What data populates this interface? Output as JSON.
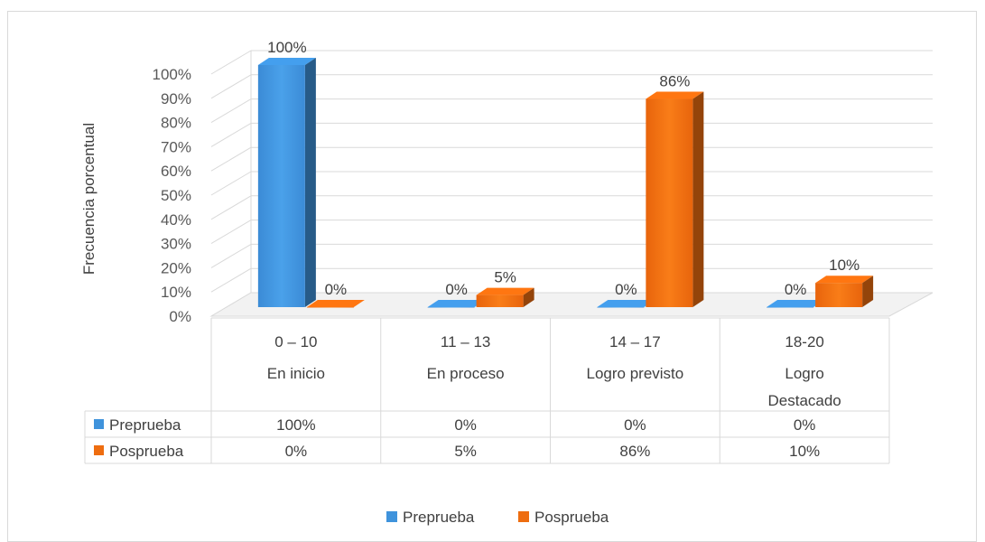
{
  "chart_data": {
    "type": "bar",
    "variant": "3d-clustered-column-with-data-table",
    "title": "",
    "ylabel": "Frecuencia porcentual",
    "xlabel": "",
    "ylim": [
      0,
      100
    ],
    "yticks": [
      "0%",
      "10%",
      "20%",
      "30%",
      "40%",
      "50%",
      "60%",
      "70%",
      "80%",
      "90%",
      "100%"
    ],
    "grid": true,
    "legend": "bottom",
    "categories": [
      {
        "range": "0 – 10",
        "level": "En inicio"
      },
      {
        "range": "11 – 13",
        "level": "En proceso"
      },
      {
        "range": "14 – 17",
        "level": "Logro previsto"
      },
      {
        "range": "18-20",
        "level": "Logro Destacado"
      }
    ],
    "series": [
      {
        "name": "Preprueba",
        "color": "#3f93dc",
        "values": [
          100,
          0,
          0,
          0
        ],
        "labels": [
          "100%",
          "0%",
          "0%",
          "0%"
        ]
      },
      {
        "name": "Posprueba",
        "color": "#ee6d10",
        "values": [
          0,
          5,
          86,
          10
        ],
        "labels": [
          "0%",
          "5%",
          "86%",
          "10%"
        ]
      }
    ]
  }
}
